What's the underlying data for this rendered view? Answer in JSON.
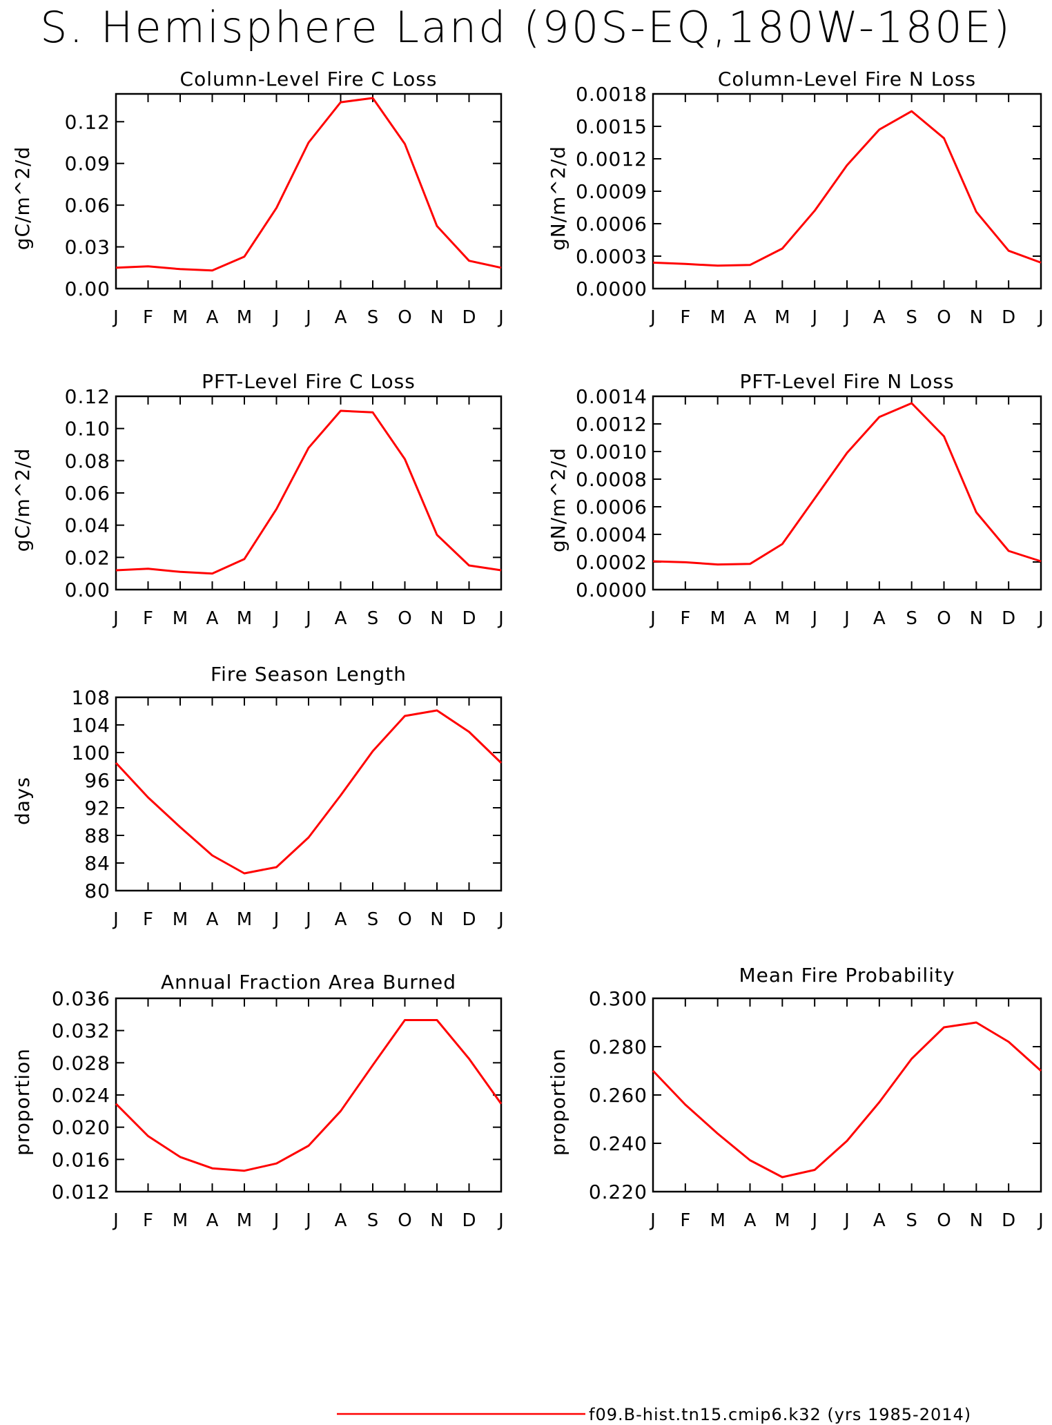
{
  "title": "S. Hemisphere Land (90S-EQ,180W-180E)",
  "legend": {
    "label": "f09.B-hist.tn15.cmip6.k32 (yrs 1985-2014)",
    "color": "#ff0000"
  },
  "chart_data": [
    {
      "id": "col-fire-c",
      "type": "line",
      "title": "Column-Level Fire C Loss",
      "ylabel": "gC/m^2/d",
      "xlabel": "",
      "categories": [
        "J",
        "F",
        "M",
        "A",
        "M",
        "J",
        "J",
        "A",
        "S",
        "O",
        "N",
        "D",
        "J"
      ],
      "ylim": [
        0.0,
        0.14
      ],
      "yticks": [
        0.0,
        0.03,
        0.06,
        0.09,
        0.12
      ],
      "ytick_labels": [
        "0.00",
        "0.03",
        "0.06",
        "0.09",
        "0.12"
      ],
      "series": [
        {
          "values": [
            0.015,
            0.016,
            0.014,
            0.013,
            0.023,
            0.058,
            0.105,
            0.134,
            0.137,
            0.104,
            0.045,
            0.02,
            0.015
          ]
        }
      ]
    },
    {
      "id": "col-fire-n",
      "type": "line",
      "title": "Column-Level Fire N Loss",
      "ylabel": "gN/m^2/d",
      "xlabel": "",
      "categories": [
        "J",
        "F",
        "M",
        "A",
        "M",
        "J",
        "J",
        "A",
        "S",
        "O",
        "N",
        "D",
        "J"
      ],
      "ylim": [
        0.0,
        0.0018
      ],
      "yticks": [
        0.0,
        0.0003,
        0.0006,
        0.0009,
        0.0012,
        0.0015,
        0.0018
      ],
      "ytick_labels": [
        "0.0000",
        "0.0003",
        "0.0006",
        "0.0009",
        "0.0012",
        "0.0015",
        "0.0018"
      ],
      "series": [
        {
          "values": [
            0.00024,
            0.000228,
            0.000212,
            0.000218,
            0.00037,
            0.00072,
            0.00114,
            0.00147,
            0.00164,
            0.00139,
            0.00071,
            0.00035,
            0.00024
          ]
        }
      ]
    },
    {
      "id": "pft-fire-c",
      "type": "line",
      "title": "PFT-Level Fire C Loss",
      "ylabel": "gC/m^2/d",
      "xlabel": "",
      "categories": [
        "J",
        "F",
        "M",
        "A",
        "M",
        "J",
        "J",
        "A",
        "S",
        "O",
        "N",
        "D",
        "J"
      ],
      "ylim": [
        0.0,
        0.12
      ],
      "yticks": [
        0.0,
        0.02,
        0.04,
        0.06,
        0.08,
        0.1,
        0.12
      ],
      "ytick_labels": [
        "0.00",
        "0.02",
        "0.04",
        "0.06",
        "0.08",
        "0.10",
        "0.12"
      ],
      "series": [
        {
          "values": [
            0.012,
            0.013,
            0.011,
            0.01,
            0.019,
            0.05,
            0.088,
            0.111,
            0.11,
            0.081,
            0.034,
            0.015,
            0.012
          ]
        }
      ]
    },
    {
      "id": "pft-fire-n",
      "type": "line",
      "title": "PFT-Level Fire N Loss",
      "ylabel": "gN/m^2/d",
      "xlabel": "",
      "categories": [
        "J",
        "F",
        "M",
        "A",
        "M",
        "J",
        "J",
        "A",
        "S",
        "O",
        "N",
        "D",
        "J"
      ],
      "ylim": [
        0.0,
        0.0014
      ],
      "yticks": [
        0.0,
        0.0002,
        0.0004,
        0.0006,
        0.0008,
        0.001,
        0.0012,
        0.0014
      ],
      "ytick_labels": [
        "0.0000",
        "0.0002",
        "0.0004",
        "0.0006",
        "0.0008",
        "0.0010",
        "0.0012",
        "0.0014"
      ],
      "series": [
        {
          "values": [
            0.000205,
            0.000198,
            0.000182,
            0.000186,
            0.00033,
            0.00066,
            0.00099,
            0.00125,
            0.00135,
            0.00111,
            0.00056,
            0.00028,
            0.000205
          ]
        }
      ]
    },
    {
      "id": "fire-season-length",
      "type": "line",
      "title": "Fire Season Length",
      "ylabel": "days",
      "xlabel": "",
      "categories": [
        "J",
        "F",
        "M",
        "A",
        "M",
        "J",
        "J",
        "A",
        "S",
        "O",
        "N",
        "D",
        "J"
      ],
      "ylim": [
        80,
        108
      ],
      "yticks": [
        80,
        84,
        88,
        92,
        96,
        100,
        104,
        108
      ],
      "ytick_labels": [
        "80",
        "84",
        "88",
        "92",
        "96",
        "100",
        "104",
        "108"
      ],
      "series": [
        {
          "values": [
            98.5,
            93.5,
            89.2,
            85.1,
            82.5,
            83.4,
            87.7,
            93.8,
            100.2,
            105.3,
            106.1,
            103.0,
            98.5
          ]
        }
      ]
    },
    {
      "id": "annual-fraction-burned",
      "type": "line",
      "title": "Annual Fraction Area Burned",
      "ylabel": "proportion",
      "xlabel": "",
      "categories": [
        "J",
        "F",
        "M",
        "A",
        "M",
        "J",
        "J",
        "A",
        "S",
        "O",
        "N",
        "D",
        "J"
      ],
      "ylim": [
        0.012,
        0.036
      ],
      "yticks": [
        0.012,
        0.016,
        0.02,
        0.024,
        0.028,
        0.032,
        0.036
      ],
      "ytick_labels": [
        "0.012",
        "0.016",
        "0.020",
        "0.024",
        "0.028",
        "0.032",
        "0.036"
      ],
      "series": [
        {
          "values": [
            0.0229,
            0.0189,
            0.0163,
            0.0149,
            0.0146,
            0.0155,
            0.0177,
            0.022,
            0.0277,
            0.0333,
            0.0333,
            0.0285,
            0.0229
          ]
        }
      ]
    },
    {
      "id": "mean-fire-probability",
      "type": "line",
      "title": "Mean Fire Probability",
      "ylabel": "proportion",
      "xlabel": "",
      "categories": [
        "J",
        "F",
        "M",
        "A",
        "M",
        "J",
        "J",
        "A",
        "S",
        "O",
        "N",
        "D",
        "J"
      ],
      "ylim": [
        0.22,
        0.3
      ],
      "yticks": [
        0.22,
        0.24,
        0.26,
        0.28,
        0.3
      ],
      "ytick_labels": [
        "0.220",
        "0.240",
        "0.260",
        "0.280",
        "0.300"
      ],
      "series": [
        {
          "values": [
            0.27,
            0.256,
            0.244,
            0.233,
            0.226,
            0.229,
            0.241,
            0.257,
            0.275,
            0.288,
            0.29,
            0.282,
            0.27
          ]
        }
      ]
    }
  ]
}
